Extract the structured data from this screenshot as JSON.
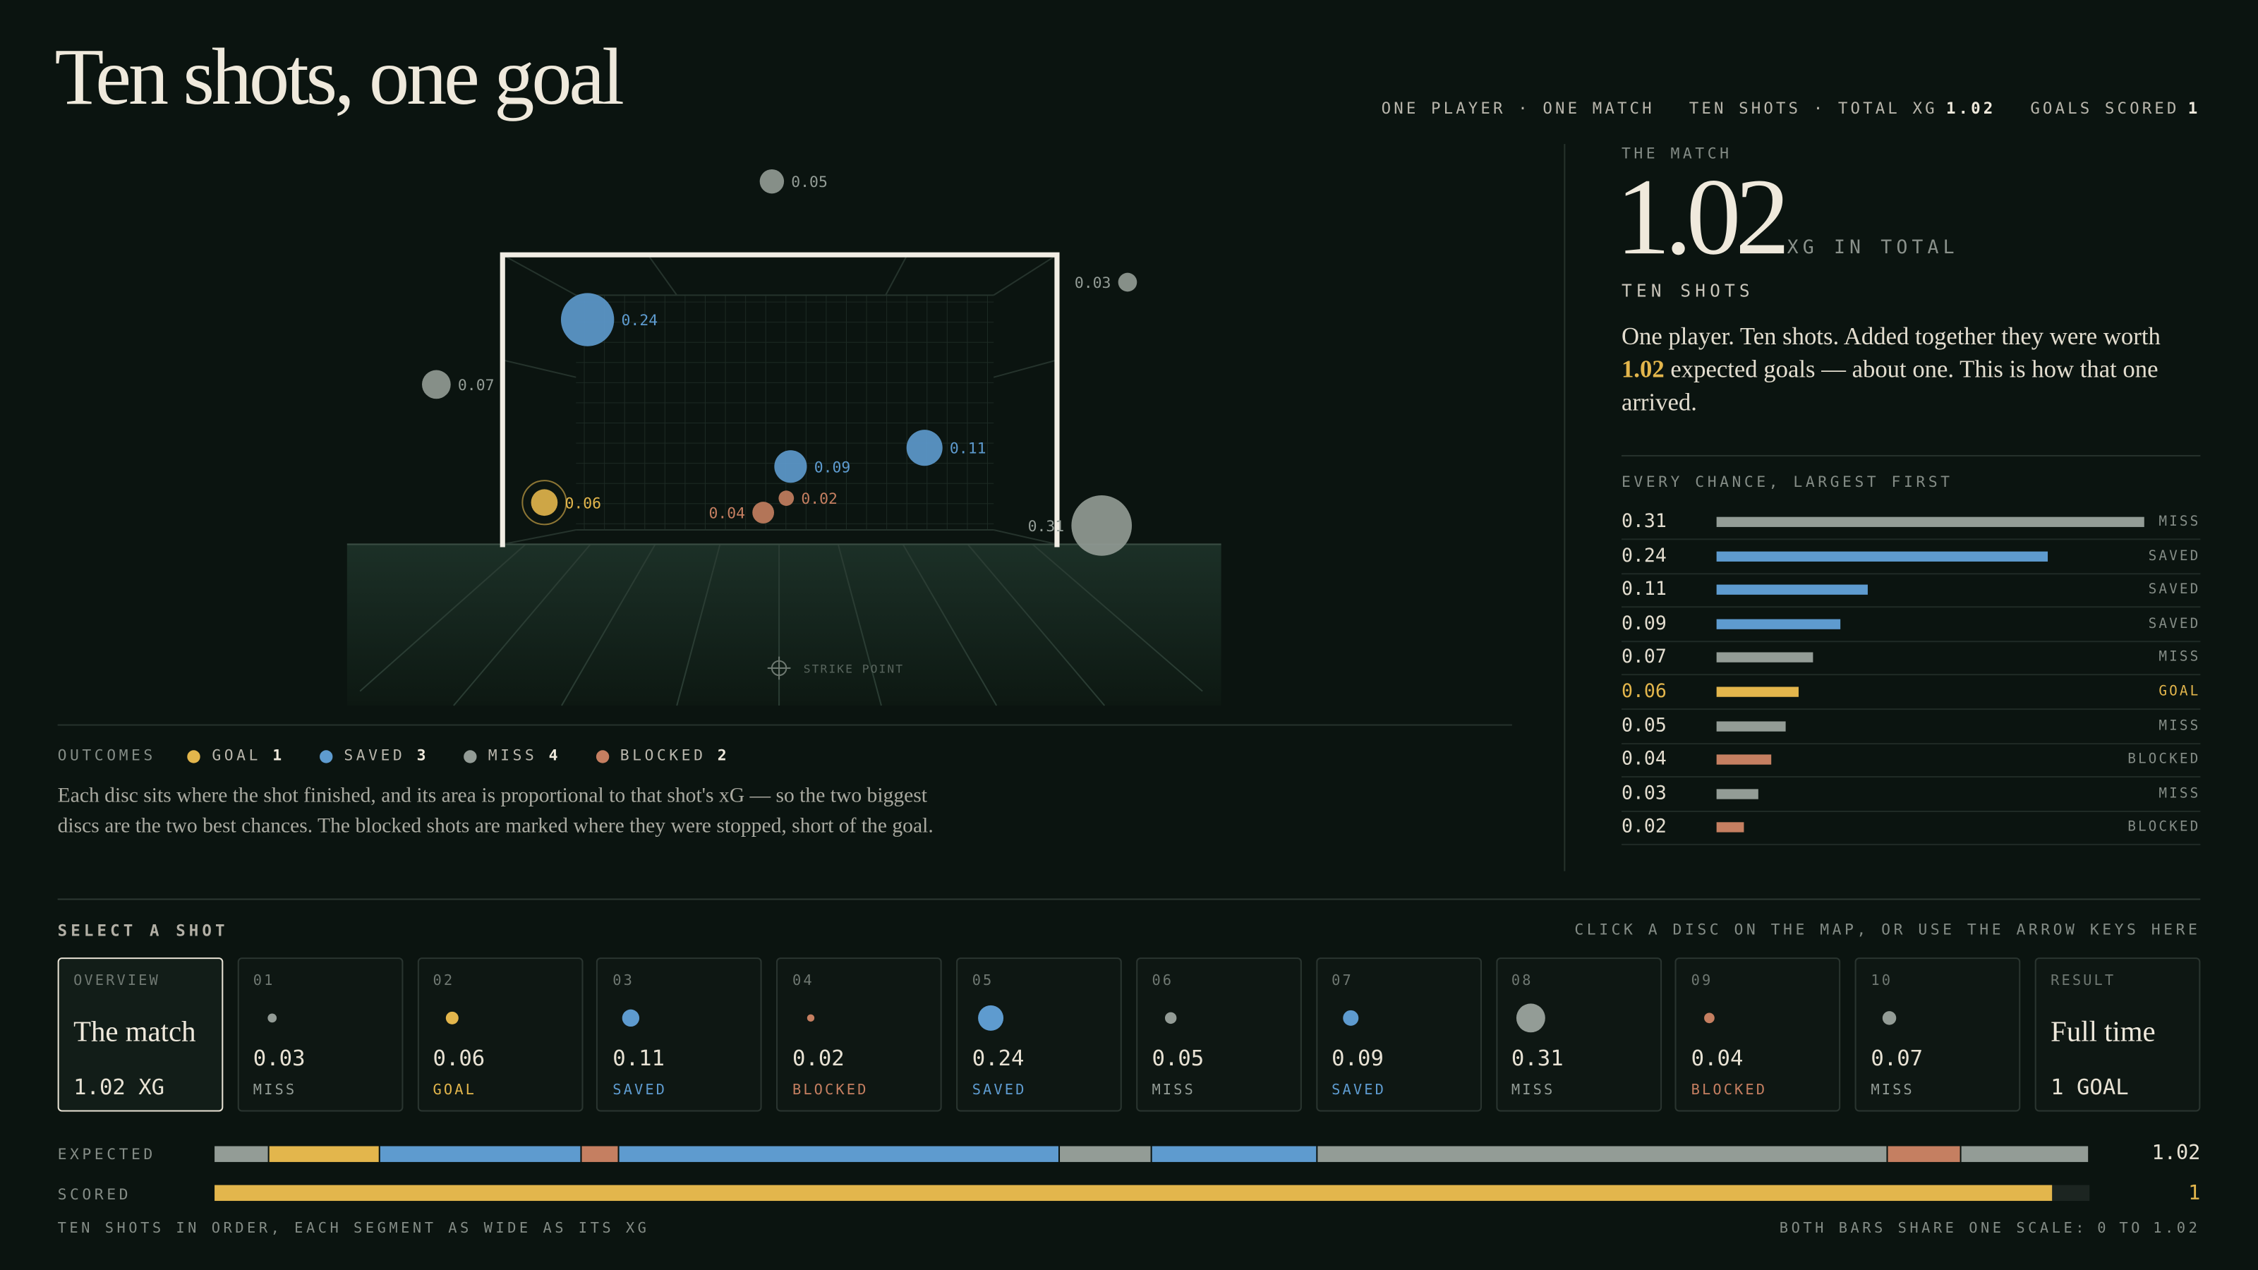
{
  "header": {
    "title": "Ten shots, one goal",
    "meta_left": "ONE PLAYER · ONE MATCH",
    "meta_xg": "TEN SHOTS · TOTAL XG",
    "meta_goals": "GOALS SCORED"
  },
  "total_xg": 1.02,
  "goals": 1,
  "map": {
    "strike_label": "STRIKE POINT"
  },
  "outcomes": {
    "label": "OUTCOMES",
    "items": [
      {
        "name": "GOAL",
        "count": 1,
        "color": "#e3b64c"
      },
      {
        "name": "SAVED",
        "count": 3,
        "color": "#5e9bcf"
      },
      {
        "name": "MISS",
        "count": 4,
        "color": "#939c96"
      },
      {
        "name": "BLOCKED",
        "count": 2,
        "color": "#c57f61"
      }
    ]
  },
  "caption": "Each disc sits where the shot finished, and its area is proportional to that shot's xG — so the two biggest discs are the two best chances. The blocked shots are marked where they were stopped, short of the goal.",
  "summary": {
    "kicker": "THE MATCH",
    "unit": "XG IN TOTAL",
    "subhead": "TEN SHOTS",
    "text_before": "One player. Ten shots. Added together they were worth",
    "text_after": "expected goals — about one. This is how that one arrived."
  },
  "ranked": {
    "title": "EVERY CHANCE, LARGEST FIRST",
    "rows": [
      {
        "xg": 0.31,
        "outcome": "MISS"
      },
      {
        "xg": 0.24,
        "outcome": "SAVED"
      },
      {
        "xg": 0.11,
        "outcome": "SAVED"
      },
      {
        "xg": 0.09,
        "outcome": "SAVED"
      },
      {
        "xg": 0.07,
        "outcome": "MISS"
      },
      {
        "xg": 0.06,
        "outcome": "GOAL"
      },
      {
        "xg": 0.05,
        "outcome": "MISS"
      },
      {
        "xg": 0.04,
        "outcome": "BLOCKED"
      },
      {
        "xg": 0.03,
        "outcome": "MISS"
      },
      {
        "xg": 0.02,
        "outcome": "BLOCKED"
      }
    ]
  },
  "selector": {
    "title": "SELECT A SHOT",
    "hint": "CLICK A DISC ON THE MAP, OR USE THE ARROW KEYS HERE",
    "overview": {
      "kicker": "OVERVIEW",
      "title": "The match",
      "unit": "XG"
    },
    "result": {
      "kicker": "RESULT",
      "title": "Full time",
      "unit": "GOAL"
    }
  },
  "shots": [
    {
      "n": "01",
      "xg": 0.03,
      "outcome": "MISS"
    },
    {
      "n": "02",
      "xg": 0.06,
      "outcome": "GOAL"
    },
    {
      "n": "03",
      "xg": 0.11,
      "outcome": "SAVED"
    },
    {
      "n": "04",
      "xg": 0.02,
      "outcome": "BLOCKED"
    },
    {
      "n": "05",
      "xg": 0.24,
      "outcome": "SAVED"
    },
    {
      "n": "06",
      "xg": 0.05,
      "outcome": "MISS"
    },
    {
      "n": "07",
      "xg": 0.09,
      "outcome": "SAVED"
    },
    {
      "n": "08",
      "xg": 0.31,
      "outcome": "MISS"
    },
    {
      "n": "09",
      "xg": 0.04,
      "outcome": "BLOCKED"
    },
    {
      "n": "10",
      "xg": 0.07,
      "outcome": "MISS"
    }
  ],
  "totals": {
    "expected_label": "EXPECTED",
    "scored_label": "SCORED",
    "note": "TEN SHOTS IN ORDER, EACH SEGMENT AS WIDE AS ITS XG",
    "scale_label": "BOTH BARS SHARE ONE SCALE:",
    "scale_min": 0,
    "scale_to": "TO",
    "scale_max": 1.02
  }
}
